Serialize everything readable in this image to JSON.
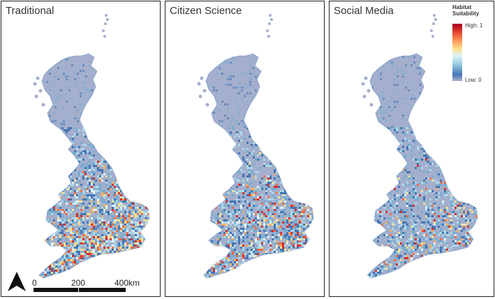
{
  "panels": [
    {
      "title": "Traditional",
      "scheme": "traditional"
    },
    {
      "title": "Citizen Science",
      "scheme": "citizen"
    },
    {
      "title": "Social Media",
      "scheme": "social"
    }
  ],
  "legend": {
    "title_line1": "Habitat",
    "title_line2": "Suitability",
    "high_label": "High: 1",
    "low_label": "Low: 0",
    "colors": [
      "#a50026",
      "#d73027",
      "#f46d43",
      "#fdae61",
      "#fee090",
      "#e0f3f8",
      "#abd9e9",
      "#74add1",
      "#4575b4",
      "#a9b4cf"
    ]
  },
  "scalebar": {
    "labels": [
      "0",
      "200",
      "400km"
    ]
  },
  "north_arrow": {
    "icon": "north-arrow-icon"
  }
}
